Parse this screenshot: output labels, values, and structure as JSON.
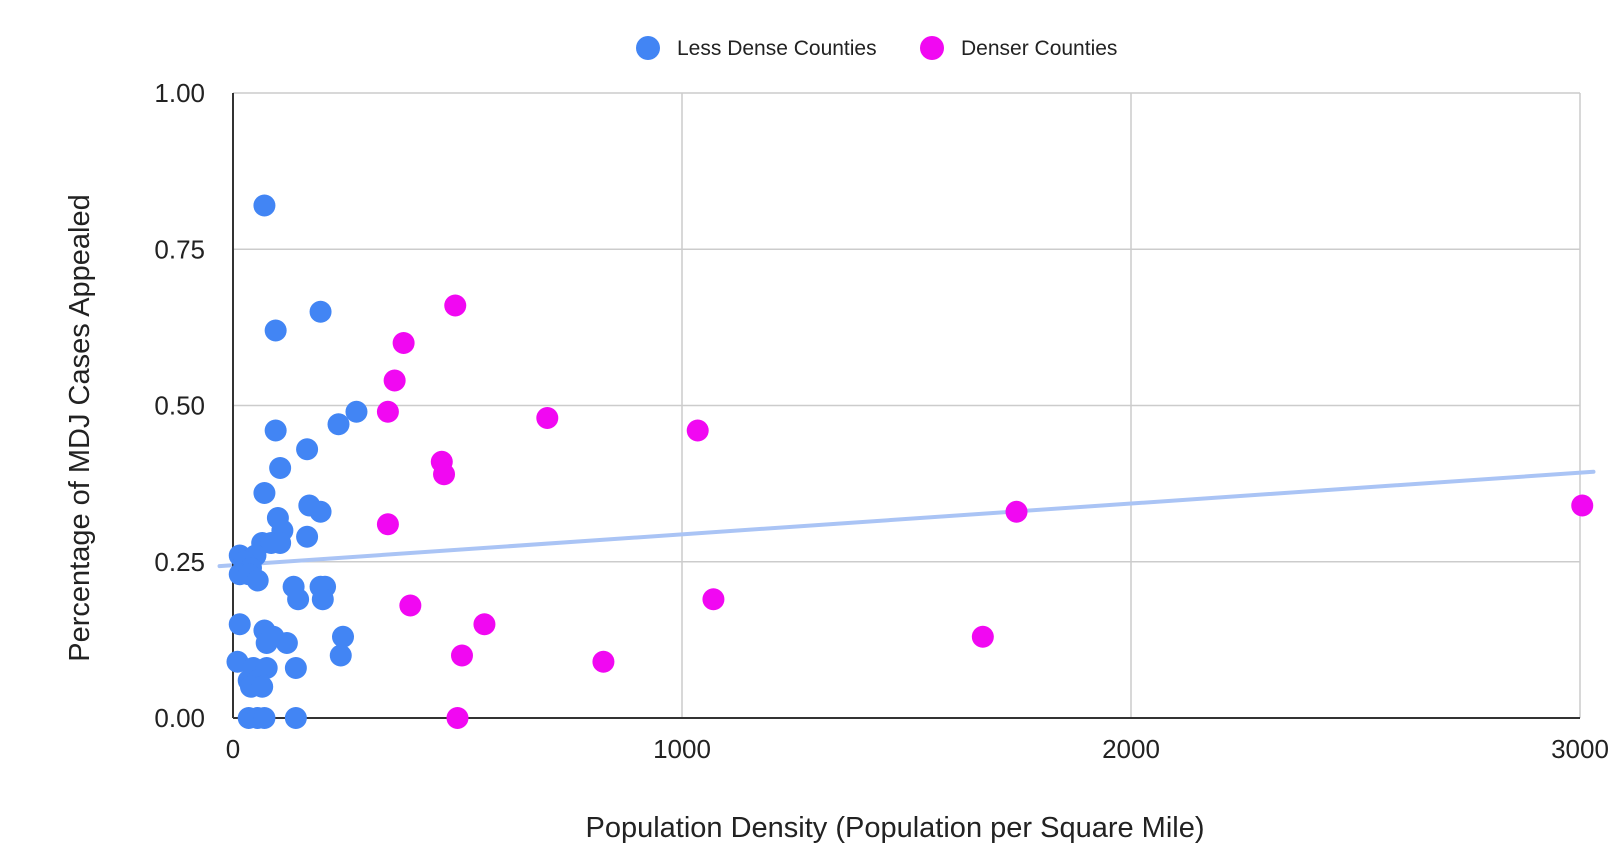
{
  "chart_data": {
    "type": "scatter",
    "xlabel": "Population Density (Population per Square Mile)",
    "ylabel": "Percentage of MDJ Cases Appealed",
    "xlim": [
      0,
      3000
    ],
    "ylim": [
      0,
      1
    ],
    "x_ticks": [
      "0",
      "1000",
      "2000",
      "3000"
    ],
    "y_ticks": [
      "0.00",
      "0.25",
      "0.50",
      "0.75",
      "1.00"
    ],
    "grid": true,
    "legend_position": "top",
    "trendline": {
      "x": [
        -30,
        3030
      ],
      "y": [
        0.243,
        0.394
      ],
      "color": "#aac4f5"
    },
    "series": [
      {
        "name": "Less Dense Counties",
        "color": "#4285f4",
        "points": [
          [
            70,
            0.82
          ],
          [
            195,
            0.65
          ],
          [
            95,
            0.62
          ],
          [
            275,
            0.49
          ],
          [
            235,
            0.47
          ],
          [
            95,
            0.46
          ],
          [
            165,
            0.43
          ],
          [
            105,
            0.4
          ],
          [
            70,
            0.36
          ],
          [
            170,
            0.34
          ],
          [
            195,
            0.33
          ],
          [
            100,
            0.32
          ],
          [
            110,
            0.3
          ],
          [
            165,
            0.29
          ],
          [
            65,
            0.28
          ],
          [
            85,
            0.28
          ],
          [
            105,
            0.28
          ],
          [
            15,
            0.26
          ],
          [
            50,
            0.26
          ],
          [
            25,
            0.25
          ],
          [
            40,
            0.24
          ],
          [
            15,
            0.23
          ],
          [
            35,
            0.23
          ],
          [
            55,
            0.22
          ],
          [
            135,
            0.21
          ],
          [
            195,
            0.21
          ],
          [
            205,
            0.21
          ],
          [
            145,
            0.19
          ],
          [
            200,
            0.19
          ],
          [
            15,
            0.15
          ],
          [
            70,
            0.14
          ],
          [
            90,
            0.13
          ],
          [
            245,
            0.13
          ],
          [
            75,
            0.12
          ],
          [
            120,
            0.12
          ],
          [
            240,
            0.1
          ],
          [
            10,
            0.09
          ],
          [
            45,
            0.08
          ],
          [
            75,
            0.08
          ],
          [
            140,
            0.08
          ],
          [
            35,
            0.06
          ],
          [
            55,
            0.06
          ],
          [
            40,
            0.05
          ],
          [
            65,
            0.05
          ],
          [
            35,
            0.0
          ],
          [
            55,
            0.0
          ],
          [
            70,
            0.0
          ],
          [
            140,
            0.0
          ]
        ]
      },
      {
        "name": "Denser Counties",
        "color": "#f108f2",
        "points": [
          [
            495,
            0.66
          ],
          [
            380,
            0.6
          ],
          [
            360,
            0.54
          ],
          [
            345,
            0.49
          ],
          [
            700,
            0.48
          ],
          [
            1035,
            0.46
          ],
          [
            465,
            0.41
          ],
          [
            470,
            0.39
          ],
          [
            1745,
            0.33
          ],
          [
            3005,
            0.34
          ],
          [
            345,
            0.31
          ],
          [
            1070,
            0.19
          ],
          [
            395,
            0.18
          ],
          [
            560,
            0.15
          ],
          [
            1670,
            0.13
          ],
          [
            510,
            0.1
          ],
          [
            825,
            0.09
          ],
          [
            500,
            0.0
          ]
        ]
      }
    ]
  }
}
